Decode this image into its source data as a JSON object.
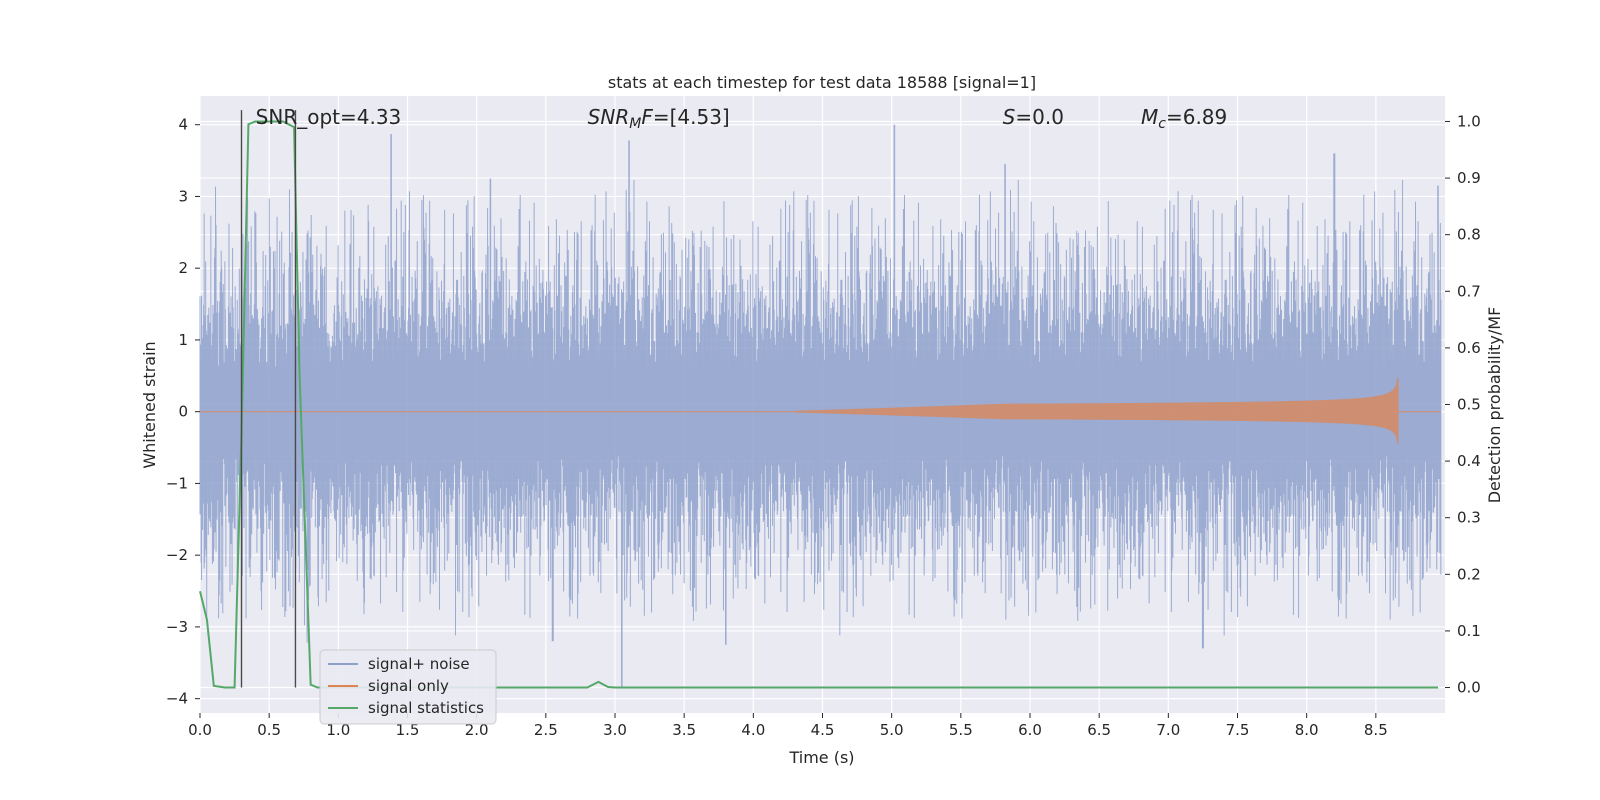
{
  "chart_data": {
    "type": "line",
    "title": "stats at each timestep for test data 18588 [signal=1]",
    "xlabel": "Time (s)",
    "ylabel_left": "Whitened strain",
    "ylabel_right": "Detection probability/MF",
    "xlim": [
      0.0,
      9.0
    ],
    "ylim_left": [
      -4.2,
      4.4
    ],
    "ylim_right": [
      -0.045,
      1.045
    ],
    "x_ticks": [
      0.0,
      0.5,
      1.0,
      1.5,
      2.0,
      2.5,
      3.0,
      3.5,
      4.0,
      4.5,
      5.0,
      5.5,
      6.0,
      6.5,
      7.0,
      7.5,
      8.0,
      8.5
    ],
    "x_tick_labels": [
      "0.0",
      "0.5",
      "1.0",
      "1.5",
      "2.0",
      "2.5",
      "3.0",
      "3.5",
      "4.0",
      "4.5",
      "5.0",
      "5.5",
      "6.0",
      "6.5",
      "7.0",
      "7.5",
      "8.0",
      "8.5"
    ],
    "y_ticks_left": [
      -4,
      -3,
      -2,
      -1,
      0,
      1,
      2,
      3,
      4
    ],
    "y_tick_labels_left": [
      "−4",
      "−3",
      "−2",
      "−1",
      "0",
      "1",
      "2",
      "3",
      "4"
    ],
    "y_ticks_right": [
      0.0,
      0.1,
      0.2,
      0.3,
      0.4,
      0.5,
      0.6,
      0.7,
      0.8,
      0.9,
      1.0
    ],
    "y_tick_labels_right": [
      "0.0",
      "0.1",
      "0.2",
      "0.3",
      "0.4",
      "0.5",
      "0.6",
      "0.7",
      "0.8",
      "0.9",
      "1.0"
    ],
    "grid": true,
    "legend_position": "lower-left",
    "annotations": [
      {
        "id": "snr_opt",
        "text": "SNR_opt=4.33",
        "x": 0.2
      },
      {
        "id": "snr_mf",
        "text": "SNR_MF=[4.53]",
        "x": 2.6
      },
      {
        "id": "s",
        "text": "S=0.0",
        "x": 5.6
      },
      {
        "id": "mc",
        "text": "M_c=6.89",
        "x": 6.6
      }
    ],
    "vertical_markers": [
      0.3,
      0.69
    ],
    "series": [
      {
        "name": "signal+ noise",
        "axis": "left",
        "color": "#8da0cb",
        "style": "noise",
        "envelope_p95": 2.2,
        "notable_peaks": [
          {
            "x": 1.38,
            "y": 3.87
          },
          {
            "x": 2.1,
            "y": 3.25
          },
          {
            "x": 3.1,
            "y": 3.78
          },
          {
            "x": 5.02,
            "y": 4.0
          },
          {
            "x": 5.82,
            "y": 3.45
          },
          {
            "x": 8.2,
            "y": 3.6
          },
          {
            "x": 8.95,
            "y": 3.15
          },
          {
            "x": 3.05,
            "y": -3.85
          },
          {
            "x": 2.55,
            "y": -3.2
          },
          {
            "x": 7.25,
            "y": -3.3
          },
          {
            "x": 3.8,
            "y": -3.25
          }
        ]
      },
      {
        "name": "signal only",
        "axis": "left",
        "color": "#dd8452",
        "style": "chirp",
        "chirp_start": 4.3,
        "chirp_peak_time": 8.66,
        "chirp_peak_amp": 0.55
      },
      {
        "name": "signal statistics",
        "axis": "right",
        "color": "#55a868",
        "x": [
          0.0,
          0.05,
          0.1,
          0.18,
          0.25,
          0.3,
          0.35,
          0.4,
          0.5,
          0.6,
          0.68,
          0.72,
          0.8,
          0.85,
          1.0,
          2.8,
          2.88,
          2.95,
          3.0,
          8.95
        ],
        "y": [
          0.17,
          0.12,
          0.003,
          0.0,
          0.0,
          0.45,
          0.995,
          1.0,
          1.0,
          1.0,
          0.99,
          0.55,
          0.005,
          0.0,
          0.0,
          0.0,
          0.01,
          0.001,
          0.0,
          0.0
        ]
      }
    ]
  }
}
